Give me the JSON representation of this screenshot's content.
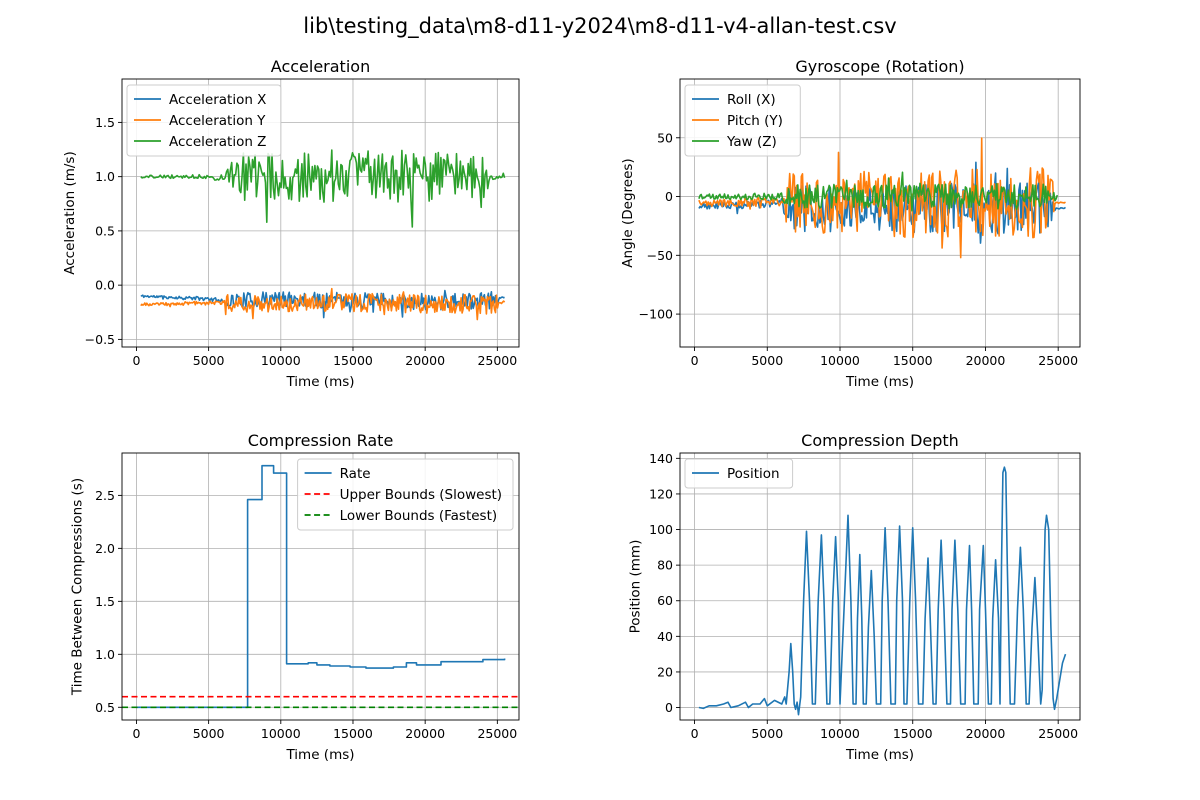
{
  "figure_title": "lib\\testing_data\\m8-d11-y2024\\m8-d11-v4-allan-test.csv",
  "chart_data": [
    {
      "type": "line",
      "title": "Acceleration",
      "xlabel": "Time (ms)",
      "ylabel": "Acceleration (m/s)",
      "xlim": [
        -1000,
        26500
      ],
      "ylim": [
        -0.57,
        1.9
      ],
      "xticks": [
        0,
        5000,
        10000,
        15000,
        20000,
        25000
      ],
      "yticks": [
        -0.5,
        0.0,
        0.5,
        1.0,
        1.5
      ],
      "ytick_labels": [
        "−0.5",
        "0.0",
        "0.5",
        "1.0",
        "1.5"
      ],
      "grid": true,
      "legend_position": "upper-left",
      "series": [
        {
          "name": "Acceleration X",
          "color": "#1f77b4",
          "generator": "noise",
          "points": [
            [
              300,
              -0.1
            ],
            [
              2000,
              -0.11
            ],
            [
              4000,
              -0.12
            ],
            [
              6000,
              -0.14
            ],
            [
              7000,
              -0.14
            ],
            [
              10000,
              -0.13
            ],
            [
              15000,
              -0.14
            ],
            [
              20000,
              -0.15
            ],
            [
              24000,
              -0.15
            ],
            [
              25500,
              -0.11
            ]
          ],
          "amp": [
            [
              300,
              0.012
            ],
            [
              6000,
              0.02
            ],
            [
              6200,
              0.07
            ],
            [
              25000,
              0.08
            ],
            [
              25100,
              0.01
            ]
          ],
          "dt": 70,
          "seed": 11
        },
        {
          "name": "Acceleration Y",
          "color": "#ff7f0e",
          "generator": "noise",
          "points": [
            [
              300,
              -0.18
            ],
            [
              3000,
              -0.17
            ],
            [
              6000,
              -0.16
            ],
            [
              8000,
              -0.17
            ],
            [
              15000,
              -0.16
            ],
            [
              20000,
              -0.17
            ],
            [
              25000,
              -0.18
            ],
            [
              25500,
              -0.15
            ]
          ],
          "amp": [
            [
              300,
              0.012
            ],
            [
              6000,
              0.02
            ],
            [
              6200,
              0.08
            ],
            [
              25000,
              0.09
            ],
            [
              25100,
              0.01
            ]
          ],
          "dt": 70,
          "seed": 23
        },
        {
          "name": "Acceleration Z",
          "color": "#2ca02c",
          "generator": "noise",
          "points": [
            [
              300,
              1.0
            ],
            [
              6000,
              1.0
            ],
            [
              7000,
              1.0
            ],
            [
              15000,
              1.0
            ],
            [
              24000,
              1.0
            ],
            [
              25500,
              0.99
            ]
          ],
          "amp": [
            [
              300,
              0.012
            ],
            [
              5000,
              0.02
            ],
            [
              6000,
              0.05
            ],
            [
              7000,
              0.22
            ],
            [
              18000,
              0.25
            ],
            [
              24000,
              0.22
            ],
            [
              24600,
              0.02
            ]
          ],
          "dt": 90,
          "seed": 37
        }
      ]
    },
    {
      "type": "line",
      "title": "Gyroscope (Rotation)",
      "xlabel": "Time (ms)",
      "ylabel": "Angle (Degrees)",
      "xlim": [
        -1000,
        26500
      ],
      "ylim": [
        -128,
        100
      ],
      "xticks": [
        0,
        5000,
        10000,
        15000,
        20000,
        25000
      ],
      "yticks": [
        -100,
        -50,
        0,
        50
      ],
      "ytick_labels": [
        "−100",
        "−50",
        "0",
        "50"
      ],
      "grid": true,
      "legend_position": "upper-left",
      "series": [
        {
          "name": "Roll (X)",
          "color": "#1f77b4",
          "generator": "noise",
          "points": [
            [
              300,
              -8
            ],
            [
              6000,
              -6
            ],
            [
              7000,
              -10
            ],
            [
              15000,
              -10
            ],
            [
              24000,
              -10
            ],
            [
              25500,
              -10
            ]
          ],
          "amp": [
            [
              300,
              3
            ],
            [
              6000,
              4
            ],
            [
              6500,
              20
            ],
            [
              24500,
              22
            ],
            [
              24800,
              0.5
            ]
          ],
          "dt": 80,
          "seed": 51
        },
        {
          "name": "Pitch (Y)",
          "color": "#ff7f0e",
          "generator": "noise",
          "points": [
            [
              300,
              -6
            ],
            [
              6000,
              -4
            ],
            [
              7000,
              -8
            ],
            [
              15000,
              -6
            ],
            [
              24000,
              -5
            ],
            [
              25500,
              -5
            ]
          ],
          "amp": [
            [
              300,
              3
            ],
            [
              6000,
              4
            ],
            [
              6500,
              28
            ],
            [
              24500,
              30
            ],
            [
              24800,
              0.5
            ]
          ],
          "dt": 80,
          "seed": 67
        },
        {
          "name": "Yaw (Z)",
          "color": "#2ca02c",
          "generator": "noise",
          "points": [
            [
              300,
              0
            ],
            [
              6000,
              0
            ],
            [
              15000,
              0
            ],
            [
              25000,
              0
            ]
          ],
          "amp": [
            [
              300,
              2
            ],
            [
              6000,
              3
            ],
            [
              6500,
              10
            ],
            [
              24000,
              11
            ],
            [
              25000,
              2
            ]
          ],
          "dt": 80,
          "seed": 79
        }
      ]
    },
    {
      "type": "line",
      "title": "Compression Rate",
      "xlabel": "Time (ms)",
      "ylabel": "Time Between Compressions (s)",
      "xlim": [
        -1000,
        26500
      ],
      "ylim": [
        0.38,
        2.9
      ],
      "xticks": [
        0,
        5000,
        10000,
        15000,
        20000,
        25000
      ],
      "yticks": [
        0.5,
        1.0,
        1.5,
        2.0,
        2.5
      ],
      "ytick_labels": [
        "0.5",
        "1.0",
        "1.5",
        "2.0",
        "2.5"
      ],
      "grid": true,
      "legend_position": "upper-right",
      "series": [
        {
          "name": "Rate",
          "color": "#1f77b4",
          "generator": "step",
          "steps": [
            [
              0,
              0.5
            ],
            [
              7700,
              2.46
            ],
            [
              8700,
              2.78
            ],
            [
              9500,
              2.71
            ],
            [
              10400,
              0.91
            ],
            [
              11900,
              0.92
            ],
            [
              12500,
              0.9
            ],
            [
              13400,
              0.89
            ],
            [
              14800,
              0.88
            ],
            [
              15900,
              0.87
            ],
            [
              17800,
              0.88
            ],
            [
              18700,
              0.92
            ],
            [
              19400,
              0.9
            ],
            [
              21100,
              0.93
            ],
            [
              24000,
              0.95
            ],
            [
              25500,
              0.96
            ]
          ]
        },
        {
          "name": "Upper Bounds (Slowest)",
          "color": "#ff0000",
          "generator": "hline",
          "y": 0.6,
          "dashed": true
        },
        {
          "name": "Lower Bounds (Fastest)",
          "color": "#008000",
          "generator": "hline",
          "y": 0.5,
          "dashed": true
        }
      ]
    },
    {
      "type": "line",
      "title": "Compression Depth",
      "xlabel": "Time (ms)",
      "ylabel": "Position (mm)",
      "xlim": [
        -1000,
        26500
      ],
      "ylim": [
        -7,
        143
      ],
      "xticks": [
        0,
        5000,
        10000,
        15000,
        20000,
        25000
      ],
      "yticks": [
        0,
        20,
        40,
        60,
        80,
        100,
        120,
        140
      ],
      "ytick_labels": [
        "0",
        "20",
        "40",
        "60",
        "80",
        "100",
        "120",
        "140"
      ],
      "grid": true,
      "legend_position": "upper-left",
      "series": [
        {
          "name": "Position",
          "color": "#1f77b4",
          "generator": "polyline",
          "points": [
            [
              300,
              0
            ],
            [
              600,
              -0.5
            ],
            [
              1000,
              1
            ],
            [
              1500,
              1
            ],
            [
              2000,
              2
            ],
            [
              2300,
              3
            ],
            [
              2500,
              0
            ],
            [
              3000,
              1
            ],
            [
              3500,
              3
            ],
            [
              3700,
              0
            ],
            [
              4000,
              2
            ],
            [
              4500,
              2
            ],
            [
              4800,
              5
            ],
            [
              5000,
              1
            ],
            [
              5500,
              4
            ],
            [
              6000,
              2
            ],
            [
              6200,
              6
            ],
            [
              6300,
              2
            ],
            [
              6500,
              20
            ],
            [
              6620,
              36
            ],
            [
              6750,
              20
            ],
            [
              6850,
              2
            ],
            [
              6950,
              -1
            ],
            [
              7050,
              3
            ],
            [
              7150,
              -4
            ],
            [
              7300,
              6
            ],
            [
              7500,
              60
            ],
            [
              7700,
              99
            ],
            [
              7900,
              60
            ],
            [
              8100,
              2
            ],
            [
              8300,
              2
            ],
            [
              8500,
              60
            ],
            [
              8720,
              97
            ],
            [
              8900,
              60
            ],
            [
              9100,
              2
            ],
            [
              9300,
              2
            ],
            [
              9500,
              60
            ],
            [
              9700,
              96
            ],
            [
              9880,
              60
            ],
            [
              10000,
              2
            ],
            [
              10300,
              60
            ],
            [
              10550,
              108
            ],
            [
              10750,
              60
            ],
            [
              10900,
              2
            ],
            [
              11100,
              2
            ],
            [
              11200,
              50
            ],
            [
              11360,
              86
            ],
            [
              11500,
              50
            ],
            [
              11600,
              2
            ],
            [
              11800,
              2
            ],
            [
              11950,
              45
            ],
            [
              12150,
              77
            ],
            [
              12350,
              40
            ],
            [
              12500,
              2
            ],
            [
              12800,
              2
            ],
            [
              12900,
              60
            ],
            [
              13100,
              101
            ],
            [
              13300,
              60
            ],
            [
              13500,
              2
            ],
            [
              13800,
              2
            ],
            [
              13900,
              60
            ],
            [
              14100,
              102
            ],
            [
              14300,
              60
            ],
            [
              14400,
              2
            ],
            [
              14600,
              2
            ],
            [
              14800,
              60
            ],
            [
              15000,
              101
            ],
            [
              15200,
              60
            ],
            [
              15400,
              2
            ],
            [
              15700,
              2
            ],
            [
              15850,
              50
            ],
            [
              16050,
              84
            ],
            [
              16200,
              50
            ],
            [
              16400,
              2
            ],
            [
              16600,
              2
            ],
            [
              16750,
              55
            ],
            [
              16950,
              94
            ],
            [
              17150,
              55
            ],
            [
              17350,
              2
            ],
            [
              17600,
              2
            ],
            [
              17700,
              55
            ],
            [
              17900,
              94
            ],
            [
              18100,
              55
            ],
            [
              18300,
              2
            ],
            [
              18600,
              2
            ],
            [
              18700,
              55
            ],
            [
              18900,
              91
            ],
            [
              19050,
              55
            ],
            [
              19200,
              2
            ],
            [
              19500,
              2
            ],
            [
              19600,
              55
            ],
            [
              19850,
              91
            ],
            [
              20000,
              55
            ],
            [
              20200,
              2
            ],
            [
              20400,
              2
            ],
            [
              20500,
              50
            ],
            [
              20700,
              83
            ],
            [
              20900,
              50
            ],
            [
              21000,
              2
            ],
            [
              21100,
              80
            ],
            [
              21200,
              132
            ],
            [
              21300,
              135
            ],
            [
              21400,
              132
            ],
            [
              21500,
              80
            ],
            [
              21700,
              2
            ],
            [
              22000,
              2
            ],
            [
              22200,
              55
            ],
            [
              22400,
              90
            ],
            [
              22600,
              55
            ],
            [
              22800,
              2
            ],
            [
              23000,
              2
            ],
            [
              23200,
              45
            ],
            [
              23400,
              73
            ],
            [
              23600,
              40
            ],
            [
              23800,
              2
            ],
            [
              23900,
              10
            ],
            [
              24000,
              60
            ],
            [
              24100,
              100
            ],
            [
              24200,
              108
            ],
            [
              24350,
              100
            ],
            [
              24500,
              45
            ],
            [
              24650,
              5
            ],
            [
              24750,
              -1
            ],
            [
              24900,
              5
            ],
            [
              25100,
              15
            ],
            [
              25300,
              25
            ],
            [
              25500,
              30
            ]
          ]
        }
      ]
    }
  ]
}
